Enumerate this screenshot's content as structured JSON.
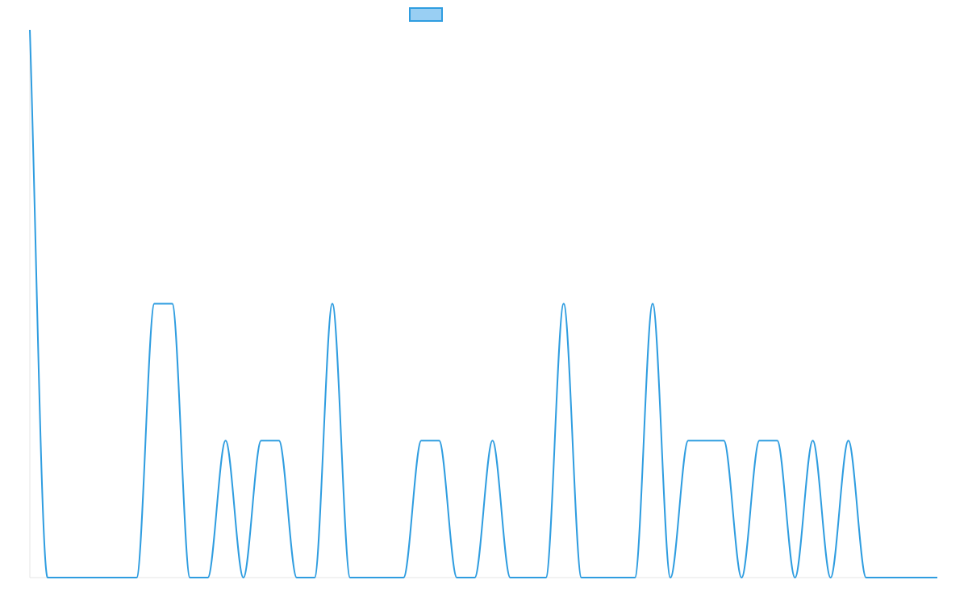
{
  "chart_data": {
    "type": "line",
    "title": "",
    "xlabel": "",
    "ylabel": "",
    "legend": {
      "position": "top-center",
      "shows_swatch_only": true
    },
    "grid": false,
    "smooth": true,
    "colors": {
      "line": "#2f9de0",
      "legend_fill": "#99cff3",
      "axis": "#e6e6e6"
    },
    "x": [
      0,
      1,
      2,
      3,
      4,
      5,
      6,
      7,
      8,
      9,
      10,
      11,
      12,
      13,
      14,
      15,
      16,
      17,
      18,
      19,
      20,
      21,
      22,
      23,
      24,
      25,
      26,
      27,
      28,
      29,
      30,
      31,
      32,
      33,
      34,
      35,
      36,
      37,
      38,
      39,
      40,
      41,
      42,
      43,
      44,
      45,
      46,
      47,
      48,
      49,
      50,
      51
    ],
    "ylim": [
      0,
      4
    ],
    "series": [
      {
        "values": [
          4,
          0,
          0,
          0,
          0,
          0,
          0,
          2,
          2,
          0,
          0,
          1,
          0,
          1,
          1,
          0,
          0,
          2,
          0,
          0,
          0,
          0,
          1,
          1,
          0,
          0,
          1,
          0,
          0,
          0,
          2,
          0,
          0,
          0,
          0,
          2,
          0,
          1,
          1,
          1,
          0,
          1,
          1,
          0,
          1,
          0,
          1,
          0,
          0,
          0,
          0,
          0
        ]
      }
    ]
  }
}
